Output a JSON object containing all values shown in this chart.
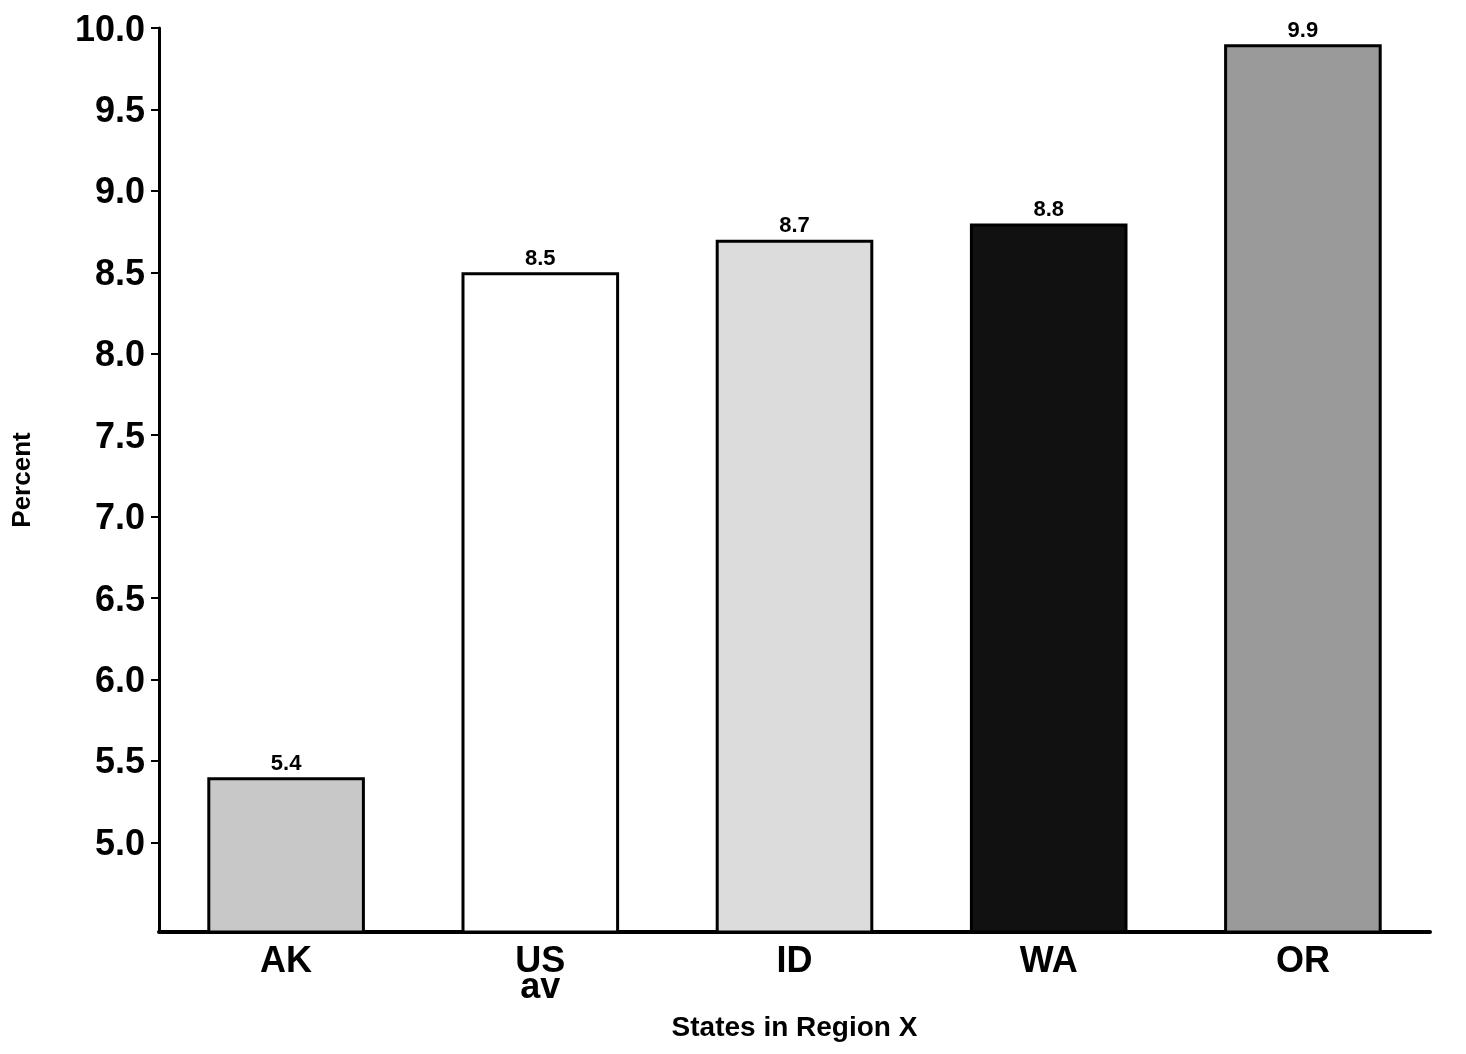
{
  "chart_data": {
    "type": "bar",
    "xlabel": "States in Region X",
    "ylabel": "Percent",
    "categories": [
      "AK",
      "US\nav",
      "ID",
      "WA",
      "OR"
    ],
    "values": [
      5.4,
      8.5,
      8.7,
      8.8,
      9.9
    ],
    "colors": [
      "#c8c8c8",
      "#ffffff",
      "#dcdcdc",
      "#111111",
      "#9a9a9a"
    ],
    "ylim": [
      4.45,
      10.0
    ],
    "yticks": [
      {
        "value": 5,
        "label": "5.0"
      },
      {
        "value": 5.5,
        "label": "5.5"
      },
      {
        "value": 6,
        "label": "6.0"
      },
      {
        "value": 6.5,
        "label": "6.5"
      },
      {
        "value": 7,
        "label": "7.0"
      },
      {
        "value": 7.5,
        "label": "7.5"
      },
      {
        "value": 8,
        "label": "8.0"
      },
      {
        "value": 8.5,
        "label": "8.5"
      },
      {
        "value": 9,
        "label": "9.0"
      },
      {
        "value": 9.5,
        "label": "9.5"
      },
      {
        "value": 10,
        "label": "10.0"
      }
    ],
    "data_labels": true,
    "grid": false
  }
}
